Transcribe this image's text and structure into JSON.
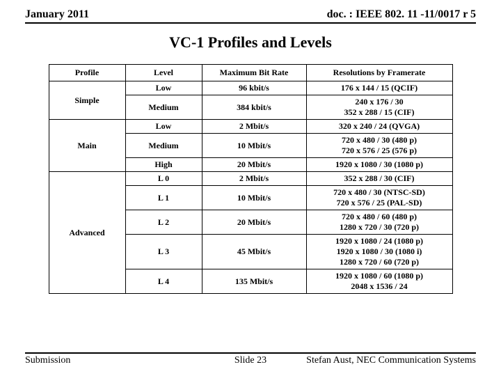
{
  "header": {
    "left": "January 2011",
    "right": "doc. : IEEE 802. 11 -11/0017 r 5"
  },
  "title": "VC-1 Profiles and Levels",
  "table": {
    "columns": [
      "Profile",
      "Level",
      "Maximum Bit Rate",
      "Resolutions by Framerate"
    ],
    "groups": [
      {
        "profile": "Simple",
        "rows": [
          {
            "level": "Low",
            "bitrate": "96 kbit/s",
            "res": "176 x 144 / 15 (QCIF)"
          },
          {
            "level": "Medium",
            "bitrate": "384 kbit/s",
            "res": "240 x 176 / 30\n352 x 288 / 15 (CIF)"
          }
        ]
      },
      {
        "profile": "Main",
        "rows": [
          {
            "level": "Low",
            "bitrate": "2 Mbit/s",
            "res": "320 x 240 / 24 (QVGA)"
          },
          {
            "level": "Medium",
            "bitrate": "10 Mbit/s",
            "res": "720 x 480 / 30 (480 p)\n720 x 576 / 25 (576 p)"
          },
          {
            "level": "High",
            "bitrate": "20 Mbit/s",
            "res": "1920 x 1080 / 30 (1080 p)"
          }
        ]
      },
      {
        "profile": "Advanced",
        "rows": [
          {
            "level": "L 0",
            "bitrate": "2 Mbit/s",
            "res": "352 x 288 / 30 (CIF)"
          },
          {
            "level": "L 1",
            "bitrate": "10 Mbit/s",
            "res": "720 x 480 / 30 (NTSC-SD)\n720 x 576 / 25 (PAL-SD)"
          },
          {
            "level": "L 2",
            "bitrate": "20 Mbit/s",
            "res": "720 x 480 / 60 (480 p)\n1280 x 720 / 30 (720 p)"
          },
          {
            "level": "L 3",
            "bitrate": "45 Mbit/s",
            "res": "1920 x 1080 / 24 (1080 p)\n1920 x 1080 / 30 (1080 i)\n1280 x 720 / 60 (720 p)"
          },
          {
            "level": "L 4",
            "bitrate": "135 Mbit/s",
            "res": "1920 x 1080 / 60 (1080 p)\n2048 x 1536 / 24"
          }
        ]
      }
    ]
  },
  "footer": {
    "left": "Submission",
    "center": "Slide 23",
    "right": "Stefan Aust, NEC Communication Systems"
  },
  "colors": {
    "text": "#000000",
    "background": "#ffffff",
    "rule": "#000000"
  }
}
